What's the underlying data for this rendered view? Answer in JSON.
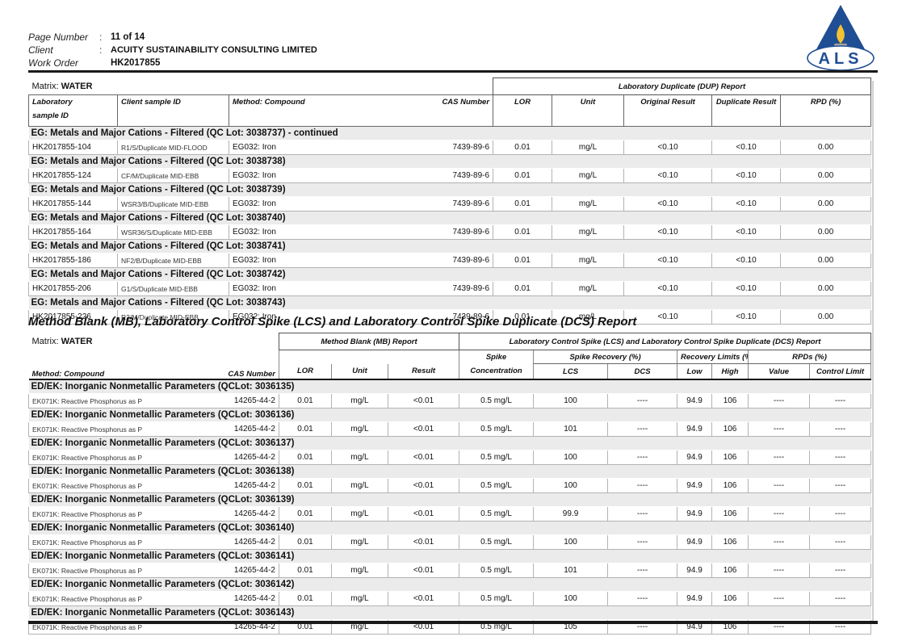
{
  "header": {
    "fields": [
      {
        "label": "Page Number",
        "sep": ":",
        "value": "11 of 14"
      },
      {
        "label": "Client",
        "sep": ":",
        "value": "ACUITY SUSTAINABILITY CONSULTING LIMITED"
      },
      {
        "label": "Work Order",
        "sep": "",
        "value": "HK2017855"
      }
    ],
    "logo_text": "ALS",
    "logo_colors": {
      "triangle": "#1f4e94",
      "flame": "#f2c230",
      "burner": "#a7a7a7",
      "text": "#1f4e94"
    }
  },
  "dup_table": {
    "matrix_prefix": "Matrix: ",
    "matrix_value": "WATER",
    "span_header": "Laboratory Duplicate (DUP) Report",
    "columns": {
      "lab_id_l1": "Laboratory",
      "lab_id_l2": "sample ID",
      "client_id": "Client sample ID",
      "compound": "Method: Compound",
      "cas": "CAS Number",
      "lor": "LOR",
      "unit": "Unit",
      "original": "Original Result",
      "duplicate": "Duplicate Result",
      "rpd": "RPD (%)"
    },
    "sections": [
      {
        "title": "EG: Metals and Major Cations - Filtered  (QC Lot: 3038737)  - continued",
        "rows": [
          {
            "lab_id": "HK2017855-104",
            "client_id": "R1/S/Duplicate MID-FLOOD",
            "compound": "EG032: Iron",
            "cas": "7439-89-6",
            "lor": "0.01",
            "unit": "mg/L",
            "original": "<0.10",
            "duplicate": "<0.10",
            "rpd": "0.00"
          }
        ]
      },
      {
        "title": "EG: Metals and Major Cations - Filtered  (QC Lot: 3038738)",
        "rows": [
          {
            "lab_id": "HK2017855-124",
            "client_id": "CF/M/Duplicate MID-EBB",
            "compound": "EG032: Iron",
            "cas": "7439-89-6",
            "lor": "0.01",
            "unit": "mg/L",
            "original": "<0.10",
            "duplicate": "<0.10",
            "rpd": "0.00"
          }
        ]
      },
      {
        "title": "EG: Metals and Major Cations - Filtered  (QC Lot: 3038739)",
        "rows": [
          {
            "lab_id": "HK2017855-144",
            "client_id": "WSR3/B/Duplicate MID-EBB",
            "compound": "EG032: Iron",
            "cas": "7439-89-6",
            "lor": "0.01",
            "unit": "mg/L",
            "original": "<0.10",
            "duplicate": "<0.10",
            "rpd": "0.00"
          }
        ]
      },
      {
        "title": "EG: Metals and Major Cations - Filtered  (QC Lot: 3038740)",
        "rows": [
          {
            "lab_id": "HK2017855-164",
            "client_id": "WSR36/S/Duplicate MID-EBB",
            "compound": "EG032: Iron",
            "cas": "7439-89-6",
            "lor": "0.01",
            "unit": "mg/L",
            "original": "<0.10",
            "duplicate": "<0.10",
            "rpd": "0.00"
          }
        ]
      },
      {
        "title": "EG: Metals and Major Cations - Filtered  (QC Lot: 3038741)",
        "rows": [
          {
            "lab_id": "HK2017855-186",
            "client_id": "NF2/B/Duplicate MID-EBB",
            "compound": "EG032: Iron",
            "cas": "7439-89-6",
            "lor": "0.01",
            "unit": "mg/L",
            "original": "<0.10",
            "duplicate": "<0.10",
            "rpd": "0.00"
          }
        ]
      },
      {
        "title": "EG: Metals and Major Cations - Filtered  (QC Lot: 3038742)",
        "rows": [
          {
            "lab_id": "HK2017855-206",
            "client_id": "G1/S/Duplicate MID-EBB",
            "compound": "EG032: Iron",
            "cas": "7439-89-6",
            "lor": "0.01",
            "unit": "mg/L",
            "original": "<0.10",
            "duplicate": "<0.10",
            "rpd": "0.00"
          }
        ]
      },
      {
        "title": "EG: Metals and Major Cations - Filtered  (QC Lot: 3038743)",
        "rows": [
          {
            "lab_id": "HK2017855-226",
            "client_id": "R2/M/Duplicate MID-EBB",
            "compound": "EG032: Iron",
            "cas": "7439-89-6",
            "lor": "0.01",
            "unit": "mg/L",
            "original": "<0.10",
            "duplicate": "<0.10",
            "rpd": "0.00"
          }
        ]
      }
    ]
  },
  "mb_section_title": "Method Blank (MB), Laboratory Control Spike (LCS) and Laboratory Control Spike Duplicate (DCS) Report",
  "mb_table": {
    "matrix_prefix": "Matrix: ",
    "matrix_value": "WATER",
    "mb_span": "Method Blank (MB) Report",
    "lcs_span": "Laboratory Control Spike (LCS) and Laboratory Control Spike Duplicate (DCS) Report",
    "groups": {
      "spike_recovery": "Spike Recovery (%)",
      "recovery_limits": "Recovery Limits (%)",
      "rpds": "RPDs (%)"
    },
    "columns": {
      "compound": "Method: Compound",
      "cas": "CAS Number",
      "lor": "LOR",
      "unit": "Unit",
      "result": "Result",
      "spike_conc_l1": "Spike",
      "spike_conc_l2": "Concentration",
      "lcs": "LCS",
      "dcs": "DCS",
      "low": "Low",
      "high": "High",
      "value": "Value",
      "control_limit": "Control Limit"
    },
    "sections": [
      {
        "title": "ED/EK: Inorganic Nonmetallic Parameters  (QCLot: 3036135)",
        "rows": [
          {
            "compound": "EK071K: Reactive Phosphorus as P",
            "cas": "14265-44-2",
            "lor": "0.01",
            "unit": "mg/L",
            "result": "<0.01",
            "spike_conc": "0.5 mg/L",
            "lcs": "100",
            "dcs": "----",
            "low": "94.9",
            "high": "106",
            "value": "----",
            "control_limit": "----"
          }
        ]
      },
      {
        "title": "ED/EK: Inorganic Nonmetallic Parameters  (QCLot: 3036136)",
        "rows": [
          {
            "compound": "EK071K: Reactive Phosphorus as P",
            "cas": "14265-44-2",
            "lor": "0.01",
            "unit": "mg/L",
            "result": "<0.01",
            "spike_conc": "0.5 mg/L",
            "lcs": "101",
            "dcs": "----",
            "low": "94.9",
            "high": "106",
            "value": "----",
            "control_limit": "----"
          }
        ]
      },
      {
        "title": "ED/EK: Inorganic Nonmetallic Parameters  (QCLot: 3036137)",
        "rows": [
          {
            "compound": "EK071K: Reactive Phosphorus as P",
            "cas": "14265-44-2",
            "lor": "0.01",
            "unit": "mg/L",
            "result": "<0.01",
            "spike_conc": "0.5 mg/L",
            "lcs": "100",
            "dcs": "----",
            "low": "94.9",
            "high": "106",
            "value": "----",
            "control_limit": "----"
          }
        ]
      },
      {
        "title": "ED/EK: Inorganic Nonmetallic Parameters  (QCLot: 3036138)",
        "rows": [
          {
            "compound": "EK071K: Reactive Phosphorus as P",
            "cas": "14265-44-2",
            "lor": "0.01",
            "unit": "mg/L",
            "result": "<0.01",
            "spike_conc": "0.5 mg/L",
            "lcs": "100",
            "dcs": "----",
            "low": "94.9",
            "high": "106",
            "value": "----",
            "control_limit": "----"
          }
        ]
      },
      {
        "title": "ED/EK: Inorganic Nonmetallic Parameters  (QCLot: 3036139)",
        "rows": [
          {
            "compound": "EK071K: Reactive Phosphorus as P",
            "cas": "14265-44-2",
            "lor": "0.01",
            "unit": "mg/L",
            "result": "<0.01",
            "spike_conc": "0.5 mg/L",
            "lcs": "99.9",
            "dcs": "----",
            "low": "94.9",
            "high": "106",
            "value": "----",
            "control_limit": "----"
          }
        ]
      },
      {
        "title": "ED/EK: Inorganic Nonmetallic Parameters  (QCLot: 3036140)",
        "rows": [
          {
            "compound": "EK071K: Reactive Phosphorus as P",
            "cas": "14265-44-2",
            "lor": "0.01",
            "unit": "mg/L",
            "result": "<0.01",
            "spike_conc": "0.5 mg/L",
            "lcs": "100",
            "dcs": "----",
            "low": "94.9",
            "high": "106",
            "value": "----",
            "control_limit": "----"
          }
        ]
      },
      {
        "title": "ED/EK: Inorganic Nonmetallic Parameters  (QCLot: 3036141)",
        "rows": [
          {
            "compound": "EK071K: Reactive Phosphorus as P",
            "cas": "14265-44-2",
            "lor": "0.01",
            "unit": "mg/L",
            "result": "<0.01",
            "spike_conc": "0.5 mg/L",
            "lcs": "101",
            "dcs": "----",
            "low": "94.9",
            "high": "106",
            "value": "----",
            "control_limit": "----"
          }
        ]
      },
      {
        "title": "ED/EK: Inorganic Nonmetallic Parameters  (QCLot: 3036142)",
        "rows": [
          {
            "compound": "EK071K: Reactive Phosphorus as P",
            "cas": "14265-44-2",
            "lor": "0.01",
            "unit": "mg/L",
            "result": "<0.01",
            "spike_conc": "0.5 mg/L",
            "lcs": "100",
            "dcs": "----",
            "low": "94.9",
            "high": "106",
            "value": "----",
            "control_limit": "----"
          }
        ]
      },
      {
        "title": "ED/EK: Inorganic Nonmetallic Parameters  (QCLot: 3036143)",
        "rows": [
          {
            "compound": "EK071K: Reactive Phosphorus as P",
            "cas": "14265-44-2",
            "lor": "0.01",
            "unit": "mg/L",
            "result": "<0.01",
            "spike_conc": "0.5 mg/L",
            "lcs": "105",
            "dcs": "----",
            "low": "94.9",
            "high": "106",
            "value": "----",
            "control_limit": "----"
          }
        ]
      }
    ]
  }
}
